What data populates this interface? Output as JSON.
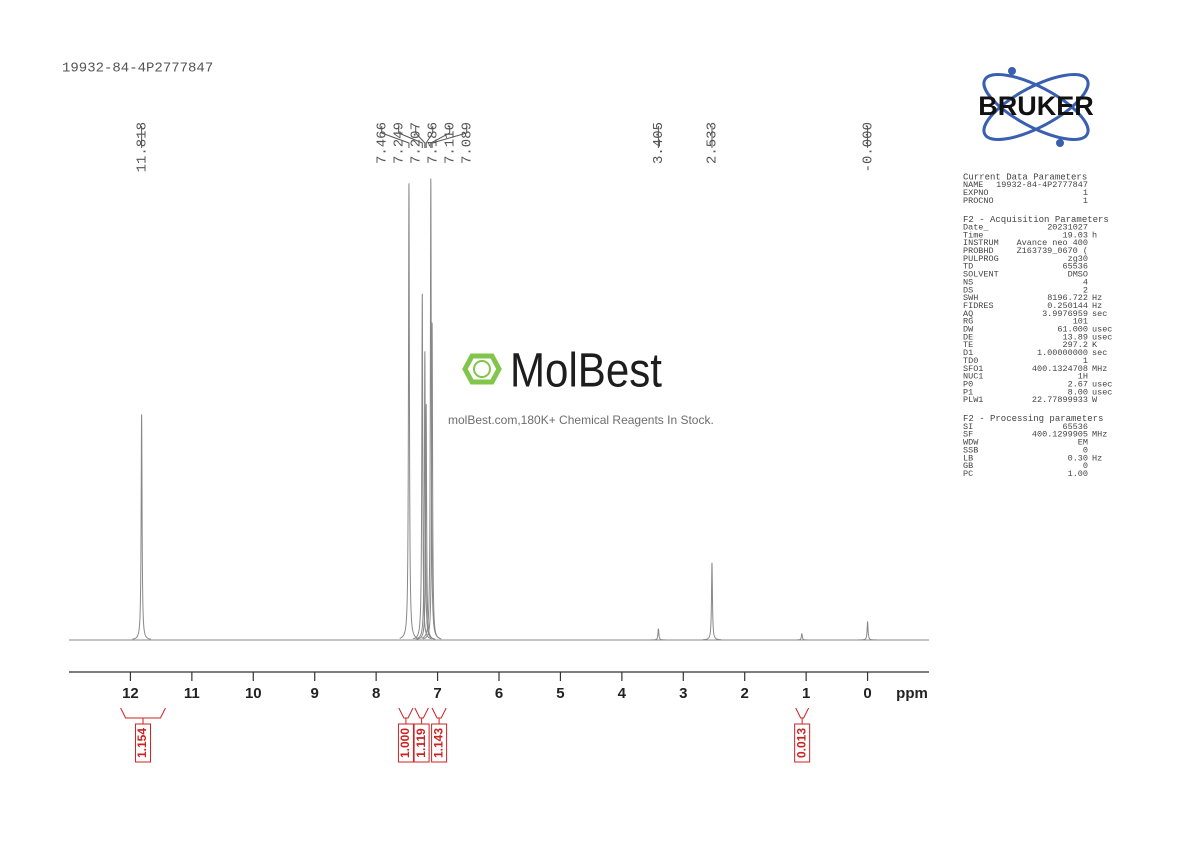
{
  "chart_data": {
    "type": "nmr",
    "title": "19932-84-4P2777847",
    "xlabel": "ppm",
    "xlim": [
      13,
      -1
    ],
    "xticks": [
      12,
      11,
      10,
      9,
      8,
      7,
      6,
      5,
      4,
      3,
      2,
      1,
      0
    ],
    "ylim": [
      0,
      100
    ],
    "color": "#888888",
    "peaks": {
      "x": [
        11.818,
        7.466,
        7.249,
        7.207,
        7.186,
        7.11,
        7.089,
        3.405,
        2.533,
        1.07,
        0
      ],
      "values": [
        47,
        95,
        72,
        60,
        49,
        96,
        66,
        2.3,
        16,
        1.3,
        3.8
      ]
    },
    "peak_labels": [
      {
        "value": 11.818,
        "label": "11.818"
      },
      {
        "value": 7.466,
        "label": "7.466"
      },
      {
        "value": 7.249,
        "label": "7.249"
      },
      {
        "value": 7.207,
        "label": "7.207"
      },
      {
        "value": 7.186,
        "label": "7.186"
      },
      {
        "value": 7.11,
        "label": "7.110"
      },
      {
        "value": 7.089,
        "label": "7.089"
      },
      {
        "value": 3.405,
        "label": "3.405"
      },
      {
        "value": 2.533,
        "label": "2.533"
      },
      {
        "value": 0,
        "label": "-0.000"
      }
    ],
    "integrals": {
      "from": [
        12.16,
        7.63,
        7.37,
        7.09,
        1.17
      ],
      "to": [
        11.43,
        7.4,
        7.15,
        6.86,
        0.96
      ],
      "values": [
        1.154,
        1,
        1.119,
        1.143,
        0.013
      ],
      "value_labels": [
        "1.154",
        "1.000",
        "1.119",
        "1.143",
        "0.013"
      ],
      "color": "#cc2222"
    }
  },
  "logo": "BRUKER",
  "watermark": {
    "brand": "MolBest",
    "tagline": "molBest.com,180K+ Chemical Reagents In Stock."
  },
  "parameters": [
    {
      "heading": "Current Data Parameters",
      "rows": [
        [
          "NAME",
          "19932-84-4P2777847"
        ],
        [
          "EXPNO",
          "1"
        ],
        [
          "PROCNO",
          "1"
        ]
      ]
    },
    {
      "heading": "F2 - Acquisition Parameters",
      "rows": [
        [
          "Date_",
          "20231027"
        ],
        [
          "Time",
          "19.03",
          "h"
        ],
        [
          "INSTRUM",
          "Avance neo 400"
        ],
        [
          "PROBHD",
          "Z163739_0670 ("
        ],
        [
          "PULPROG",
          "zg30"
        ],
        [
          "TD",
          "65536"
        ],
        [
          "SOLVENT",
          "DMSO"
        ],
        [
          "NS",
          "4"
        ],
        [
          "DS",
          "2"
        ],
        [
          "SWH",
          "8196.722",
          "Hz"
        ],
        [
          "FIDRES",
          "0.250144",
          "Hz"
        ],
        [
          "AQ",
          "3.9976959",
          "sec"
        ],
        [
          "RG",
          "101"
        ],
        [
          "DW",
          "61.000",
          "usec"
        ],
        [
          "DE",
          "13.89",
          "usec"
        ],
        [
          "TE",
          "297.2",
          "K"
        ],
        [
          "D1",
          "1.00000000",
          "sec"
        ],
        [
          "TD0",
          "1"
        ],
        [
          "SFO1",
          "400.1324708",
          "MHz"
        ],
        [
          "NUC1",
          "1H"
        ],
        [
          "P0",
          "2.67",
          "usec"
        ],
        [
          "P1",
          "8.00",
          "usec"
        ],
        [
          "PLW1",
          "22.77899933",
          "W"
        ]
      ]
    },
    {
      "heading": "F2 - Processing parameters",
      "rows": [
        [
          "SI",
          "65536"
        ],
        [
          "SF",
          "400.1299905",
          "MHz"
        ],
        [
          "WDW",
          "EM"
        ],
        [
          "SSB",
          "0"
        ],
        [
          "LB",
          "0.30",
          "Hz"
        ],
        [
          "GB",
          "0"
        ],
        [
          "PC",
          "1.00"
        ]
      ]
    }
  ]
}
